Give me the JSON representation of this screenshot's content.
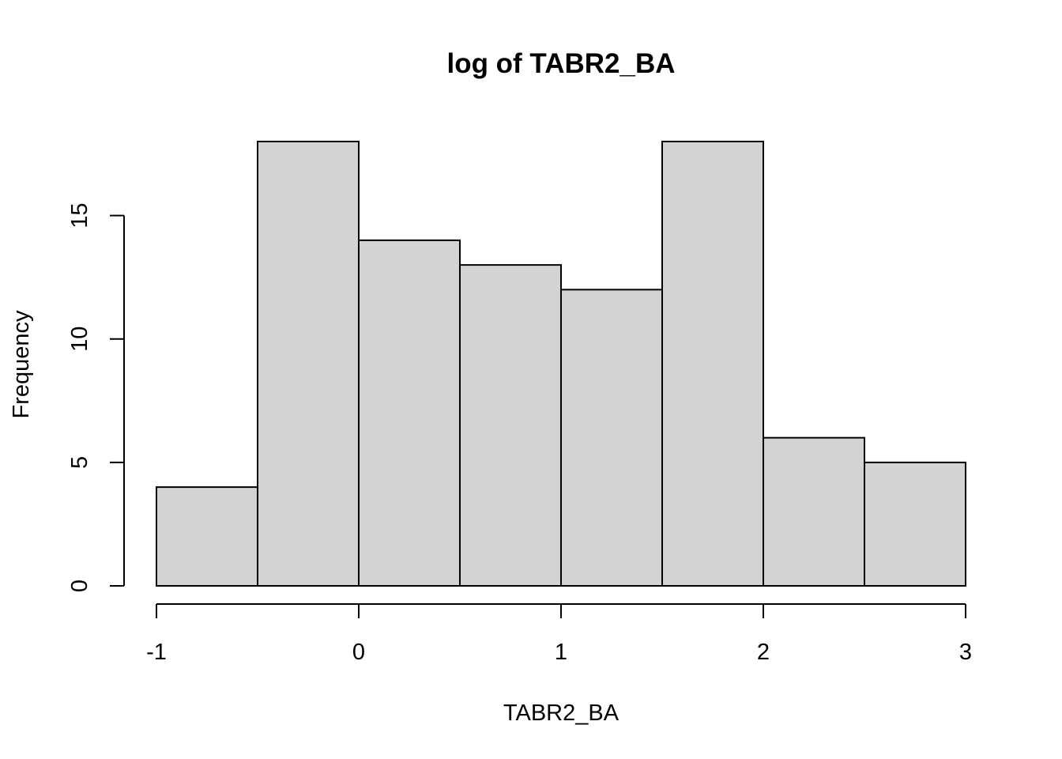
{
  "chart_data": {
    "type": "bar",
    "title": "log of TABR2_BA",
    "xlabel": "TABR2_BA",
    "ylabel": "Frequency",
    "bins": [
      {
        "x0": -1.0,
        "x1": -0.5,
        "count": 4
      },
      {
        "x0": -0.5,
        "x1": 0.0,
        "count": 18
      },
      {
        "x0": 0.0,
        "x1": 0.5,
        "count": 14
      },
      {
        "x0": 0.5,
        "x1": 1.0,
        "count": 13
      },
      {
        "x0": 1.0,
        "x1": 1.5,
        "count": 12
      },
      {
        "x0": 1.5,
        "x1": 2.0,
        "count": 18
      },
      {
        "x0": 2.0,
        "x1": 2.5,
        "count": 6
      },
      {
        "x0": 2.5,
        "x1": 3.0,
        "count": 5
      }
    ],
    "xlim": [
      -1,
      3
    ],
    "ylim": [
      0,
      18
    ],
    "xticks": [
      -1,
      0,
      1,
      2,
      3
    ],
    "xtick_labels": [
      "-1",
      "0",
      "1",
      "2",
      "3"
    ],
    "yticks": [
      0,
      5,
      10,
      15
    ],
    "ytick_labels": [
      "0",
      "5",
      "10",
      "15"
    ],
    "colors": {
      "bar_fill": "#d3d3d3",
      "bar_stroke": "#000000"
    },
    "grid": false
  }
}
